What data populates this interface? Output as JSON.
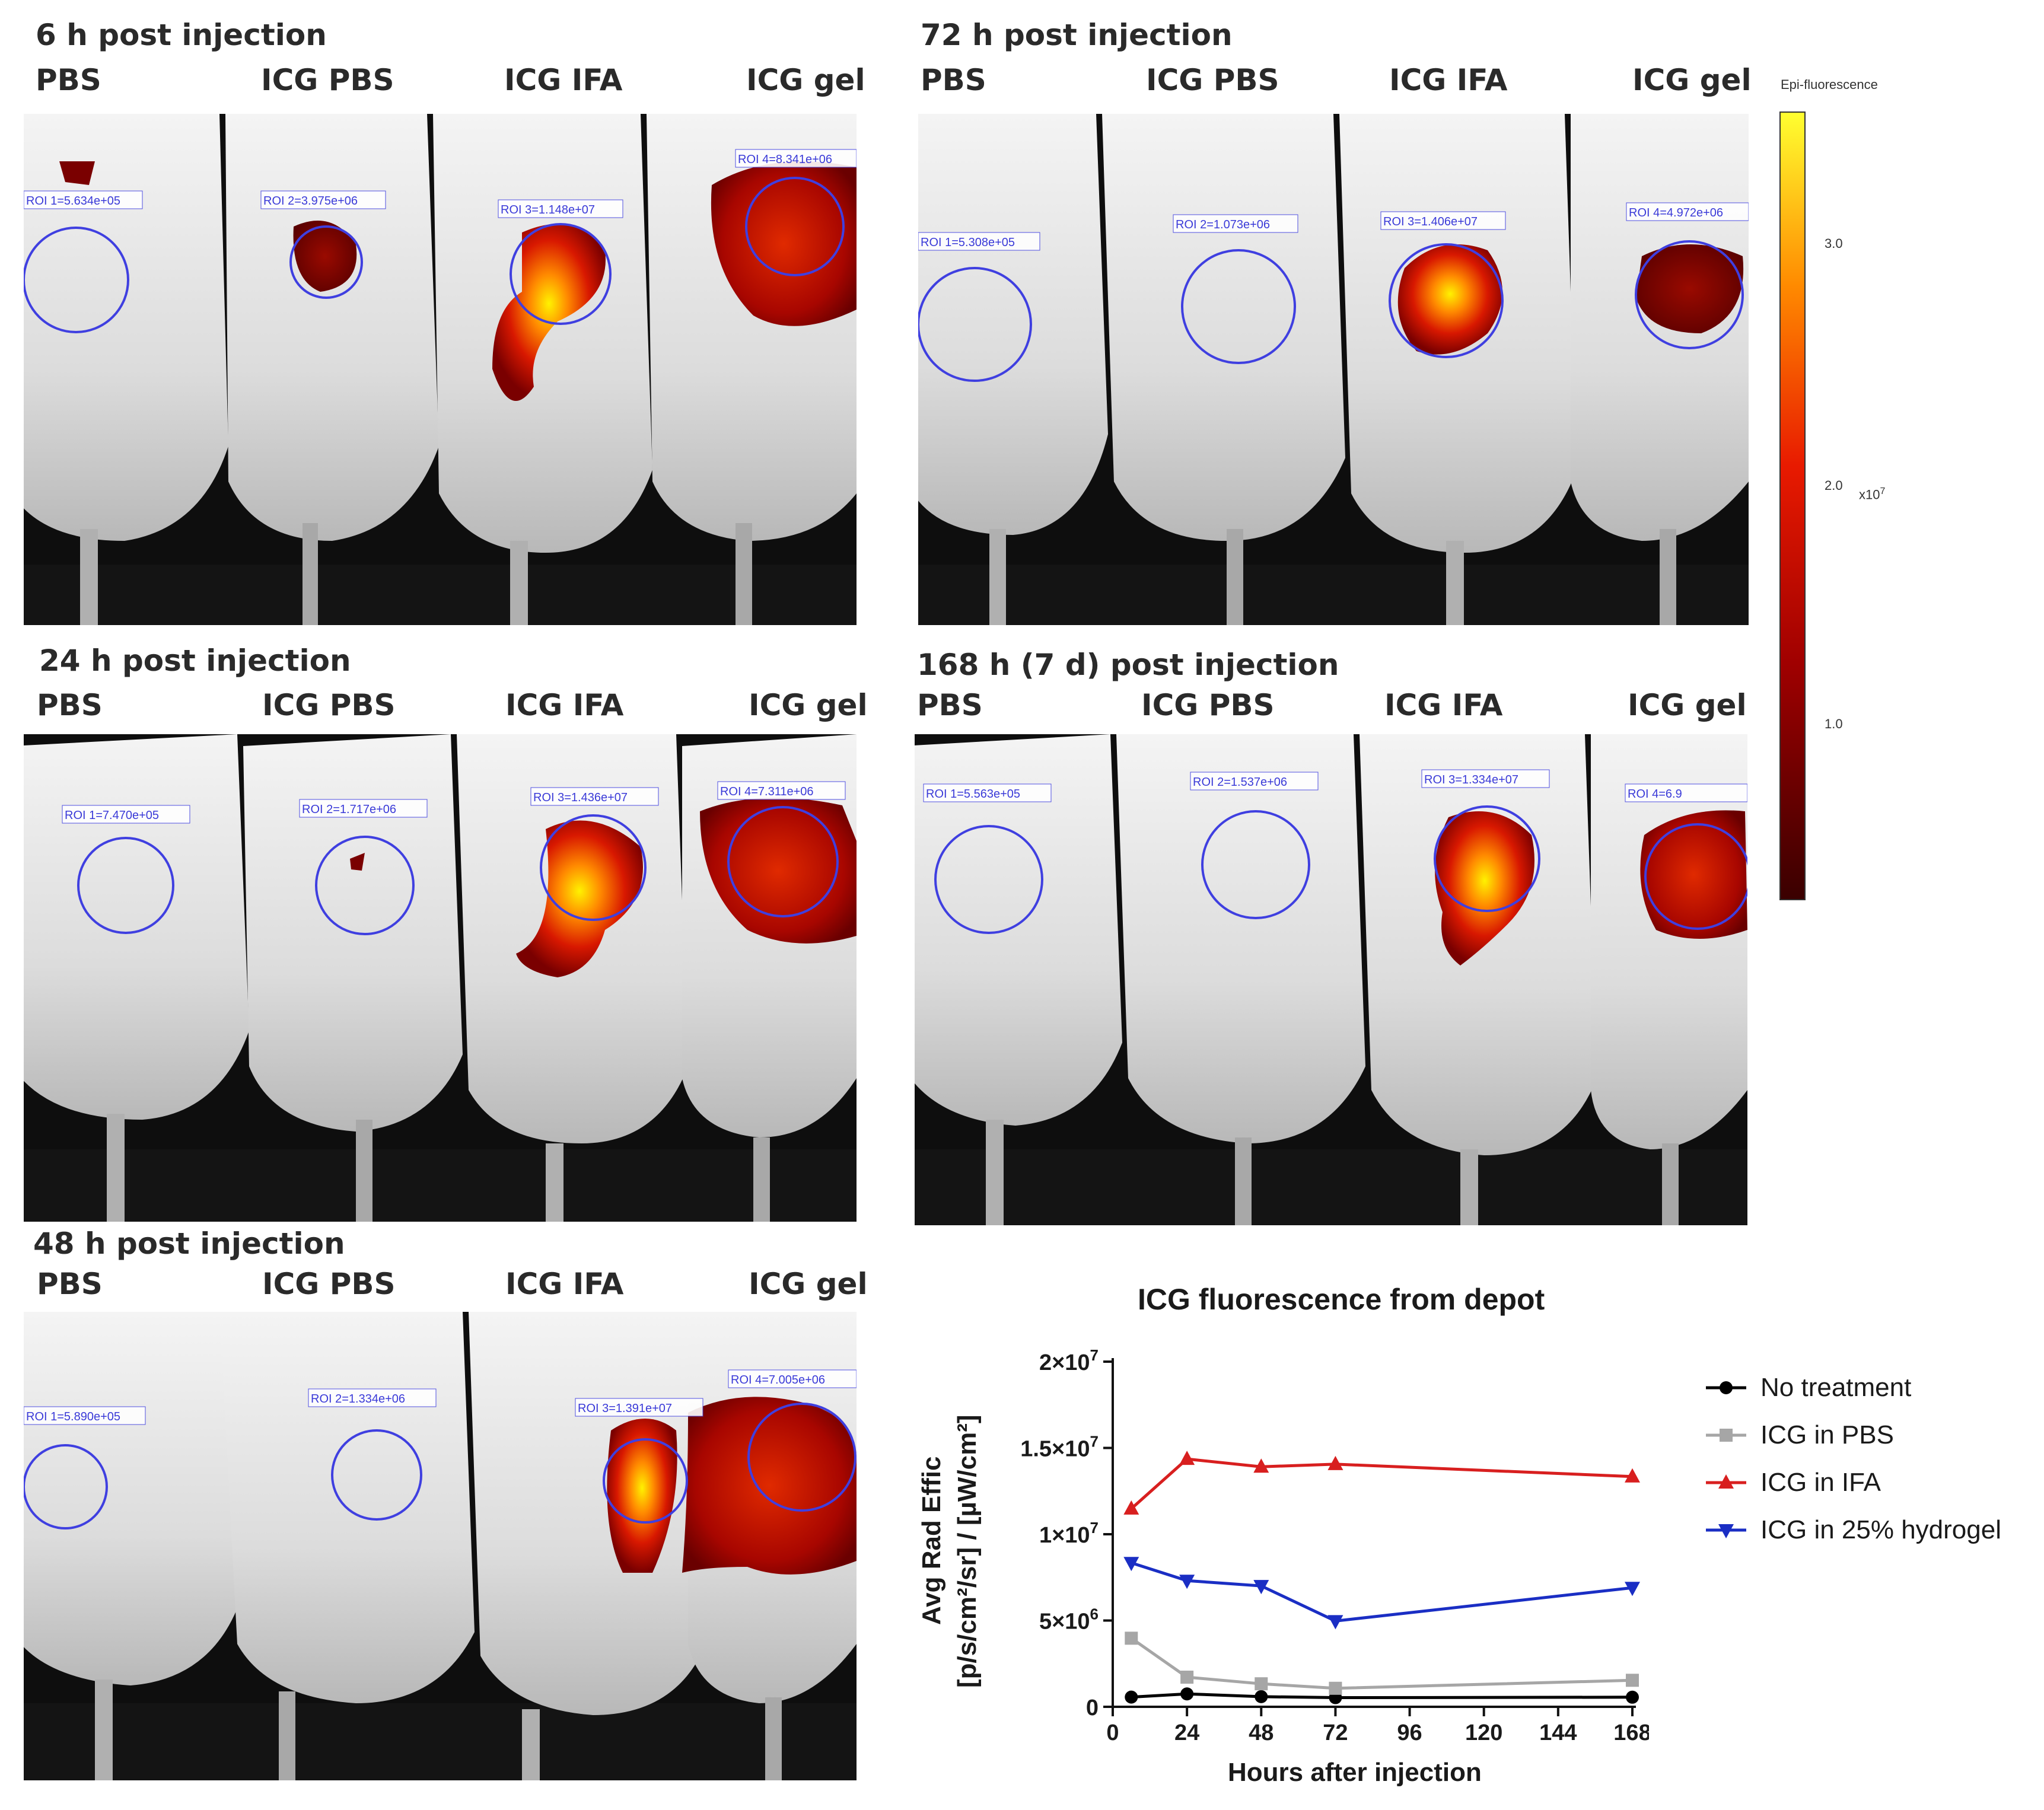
{
  "panels": [
    {
      "title": "6 h post injection",
      "groups": [
        "PBS",
        "ICG PBS",
        "ICG IFA",
        "ICG gel"
      ],
      "rois": [
        "ROI 1=5.634e+05",
        "ROI 2=3.975e+06",
        "ROI 3=1.148e+07",
        "ROI 4=8.341e+06"
      ]
    },
    {
      "title": "72 h post injection",
      "groups": [
        "PBS",
        "ICG PBS",
        "ICG IFA",
        "ICG gel"
      ],
      "rois": [
        "ROI 1=5.308e+05",
        "ROI 2=1.073e+06",
        "ROI 3=1.406e+07",
        "ROI 4=4.972e+06"
      ]
    },
    {
      "title": "24 h post injection",
      "groups": [
        "PBS",
        "ICG PBS",
        "ICG IFA",
        "ICG gel"
      ],
      "rois": [
        "ROI 1=7.470e+05",
        "ROI 2=1.717e+06",
        "ROI 3=1.436e+07",
        "ROI 4=7.311e+06"
      ]
    },
    {
      "title": "168 h (7 d) post injection",
      "groups": [
        "PBS",
        "ICG PBS",
        "ICG IFA",
        "ICG gel"
      ],
      "rois": [
        "ROI 1=5.563e+05",
        "ROI 2=1.537e+06",
        "ROI 3=1.334e+07",
        "ROI 4=6.9"
      ]
    },
    {
      "title": "48 h post injection",
      "groups": [
        "PBS",
        "ICG PBS",
        "ICG IFA",
        "ICG gel"
      ],
      "rois": [
        "ROI 1=5.890e+05",
        "ROI 2=1.334e+06",
        "ROI 3=1.391e+07",
        "ROI 4=7.005e+06"
      ]
    }
  ],
  "colorbar": {
    "title": "Epi-fluorescence",
    "ticks": [
      "3.0",
      "2.0",
      "1.0"
    ],
    "exponent": "x10",
    "exponent_power": "7"
  },
  "chart_data": {
    "type": "line",
    "title": "ICG fluorescence from depot",
    "xlabel": "Hours after injection",
    "ylabel_line1": "Avg Rad Effic",
    "ylabel_line2": "[p/s/cm²/sr] / [µW/cm²]",
    "xlim": [
      0,
      168
    ],
    "ylim": [
      0,
      20000000
    ],
    "x_ticks": [
      "0",
      "24",
      "48",
      "72",
      "96",
      "120",
      "144",
      "168"
    ],
    "y_ticks": [
      {
        "value": 0,
        "mant": "0",
        "exp": ""
      },
      {
        "value": 5000000,
        "mant": "5×10",
        "exp": "6"
      },
      {
        "value": 10000000,
        "mant": "1×10",
        "exp": "7"
      },
      {
        "value": 15000000,
        "mant": "1.5×10",
        "exp": "7"
      },
      {
        "value": 20000000,
        "mant": "2×10",
        "exp": "7"
      }
    ],
    "series": [
      {
        "name": "No treatment",
        "color": "#000000",
        "marker": "circle",
        "x": [
          6,
          24,
          48,
          72,
          168
        ],
        "values": [
          563400,
          747000,
          589000,
          530800,
          556300
        ]
      },
      {
        "name": "ICG in PBS",
        "color": "#a6a6a6",
        "marker": "square",
        "x": [
          6,
          24,
          48,
          72,
          168
        ],
        "values": [
          3975000,
          1717000,
          1334000,
          1073000,
          1537000
        ]
      },
      {
        "name": "ICG in IFA",
        "color": "#d81f1f",
        "marker": "triangle-up",
        "x": [
          6,
          24,
          48,
          72,
          168
        ],
        "values": [
          11480000,
          14360000,
          13910000,
          14060000,
          13340000
        ]
      },
      {
        "name": "ICG in 25% hydrogel",
        "color": "#1a2ec4",
        "marker": "triangle-down",
        "x": [
          6,
          24,
          48,
          72,
          168
        ],
        "values": [
          8341000,
          7311000,
          7005000,
          4972000,
          6900000
        ]
      }
    ]
  }
}
